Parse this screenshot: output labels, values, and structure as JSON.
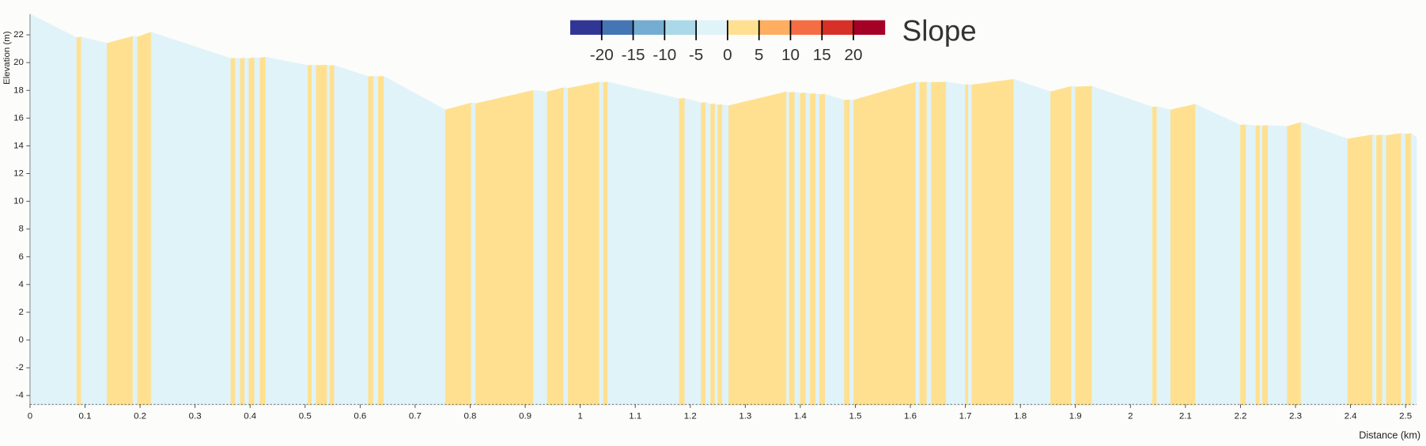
{
  "chart_data": {
    "type": "area",
    "x_label": "Distance (km)",
    "y_label": "Elevation (m)",
    "x": [
      0,
      0.085,
      0.093,
      0.14,
      0.187,
      0.195,
      0.22,
      0.365,
      0.373,
      0.382,
      0.39,
      0.398,
      0.408,
      0.418,
      0.428,
      0.505,
      0.512,
      0.52,
      0.54,
      0.545,
      0.553,
      0.615,
      0.624,
      0.633,
      0.643,
      0.755,
      0.802,
      0.81,
      0.915,
      0.94,
      0.97,
      0.978,
      1.035,
      1.042,
      1.05,
      1.18,
      1.19,
      1.22,
      1.228,
      1.237,
      1.245,
      1.25,
      1.258,
      1.27,
      1.375,
      1.38,
      1.39,
      1.4,
      1.41,
      1.418,
      1.428,
      1.435,
      1.445,
      1.48,
      1.49,
      1.497,
      1.61,
      1.617,
      1.63,
      1.638,
      1.665,
      1.7,
      1.705,
      1.712,
      1.788,
      1.855,
      1.893,
      1.9,
      1.93,
      2.04,
      2.048,
      2.073,
      2.118,
      2.2,
      2.21,
      2.228,
      2.235,
      2.24,
      2.25,
      2.285,
      2.31,
      2.395,
      2.44,
      2.447,
      2.458,
      2.465,
      2.492,
      2.5,
      2.51,
      2.52
    ],
    "values": [
      23.5,
      21.8,
      21.85,
      21.4,
      21.9,
      21.85,
      22.2,
      20.3,
      20.32,
      20.3,
      20.33,
      20.31,
      20.36,
      20.34,
      20.4,
      19.8,
      19.82,
      19.8,
      19.82,
      19.78,
      19.8,
      19.0,
      19.02,
      19.0,
      19.02,
      16.6,
      17.1,
      17.05,
      18.0,
      17.9,
      18.2,
      18.15,
      18.6,
      18.58,
      18.6,
      17.4,
      17.42,
      17.1,
      17.12,
      17.0,
      17.02,
      16.95,
      16.97,
      16.9,
      17.9,
      17.85,
      17.87,
      17.8,
      17.82,
      17.75,
      17.77,
      17.7,
      17.72,
      17.3,
      17.32,
      17.3,
      18.6,
      18.58,
      18.6,
      18.58,
      18.6,
      18.4,
      18.42,
      18.4,
      18.8,
      17.9,
      18.3,
      18.25,
      18.3,
      16.8,
      16.82,
      16.6,
      17.0,
      15.5,
      15.52,
      15.45,
      15.47,
      15.45,
      15.47,
      15.4,
      15.7,
      14.5,
      14.8,
      14.75,
      14.8,
      14.75,
      14.9,
      14.85,
      14.9,
      14.6
    ],
    "xlim": [
      0,
      2.52
    ],
    "ylim": [
      -4.7,
      23.5
    ],
    "xticks": [
      0,
      0.1,
      0.2,
      0.3,
      0.4,
      0.5,
      0.6,
      0.7,
      0.8,
      0.9,
      1,
      1.1,
      1.2,
      1.3,
      1.4,
      1.5,
      1.6,
      1.7,
      1.8,
      1.9,
      2,
      2.1,
      2.2,
      2.3,
      2.4,
      2.5
    ],
    "yticks": [
      -4,
      -2,
      0,
      2,
      4,
      6,
      8,
      10,
      12,
      14,
      16,
      18,
      20,
      22
    ],
    "legend": {
      "title": "Slope",
      "ticks": [
        -20,
        -15,
        -10,
        -5,
        0,
        5,
        10,
        15,
        20
      ],
      "colors": [
        "#313695",
        "#4575b4",
        "#74add1",
        "#abd9e9",
        "#e0f3f8",
        "#fee090",
        "#fdae61",
        "#f46d43",
        "#d73027",
        "#a50026"
      ]
    }
  }
}
